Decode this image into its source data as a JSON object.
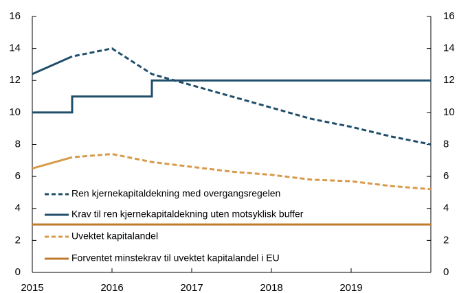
{
  "chart_data": {
    "type": "line",
    "xlim": [
      2015,
      2020
    ],
    "xticks": [
      2015,
      2016,
      2017,
      2018,
      2019
    ],
    "ylim": [
      0,
      16
    ],
    "yticks": [
      0,
      2,
      4,
      6,
      8,
      10,
      12,
      14,
      16
    ],
    "y2lim": [
      0,
      16
    ],
    "y2ticks": [
      0,
      2,
      4,
      6,
      8,
      10,
      12,
      14,
      16
    ],
    "legend": "lower left",
    "series": [
      {
        "name": "Ren kjernekapitaldekning med overgangsregelen",
        "color": "#1f4e6b",
        "dash": true,
        "dash_from": 2015.5,
        "x": [
          2015,
          2015.5,
          2016,
          2016.5,
          2017,
          2017.5,
          2018,
          2018.5,
          2019,
          2019.5,
          2020
        ],
        "values": [
          12.4,
          13.5,
          14.0,
          12.4,
          11.7,
          11.0,
          10.3,
          9.6,
          9.1,
          8.5,
          8.0
        ]
      },
      {
        "name": "Krav til ren kjernekapitaldekning uten motsyklisk buffer",
        "color": "#1f4e6b",
        "dash": false,
        "x": [
          2015,
          2015.5,
          2015.5,
          2016.5,
          2016.5,
          2020
        ],
        "values": [
          10,
          10,
          11,
          11,
          12,
          12
        ]
      },
      {
        "name": "Uvektet kapitalandel",
        "color": "#d89a4a",
        "dash": true,
        "dash_from": 2015.5,
        "x": [
          2015,
          2015.5,
          2016,
          2016.5,
          2017,
          2017.5,
          2018,
          2018.5,
          2019,
          2019.5,
          2020
        ],
        "values": [
          6.5,
          7.2,
          7.4,
          6.9,
          6.6,
          6.3,
          6.1,
          5.8,
          5.7,
          5.4,
          5.2
        ]
      },
      {
        "name": "Forventet minstekrav til uvektet kapitalandel i EU",
        "color": "#c07a2c",
        "dash": false,
        "x": [
          2015,
          2020
        ],
        "values": [
          3,
          3
        ]
      }
    ]
  }
}
